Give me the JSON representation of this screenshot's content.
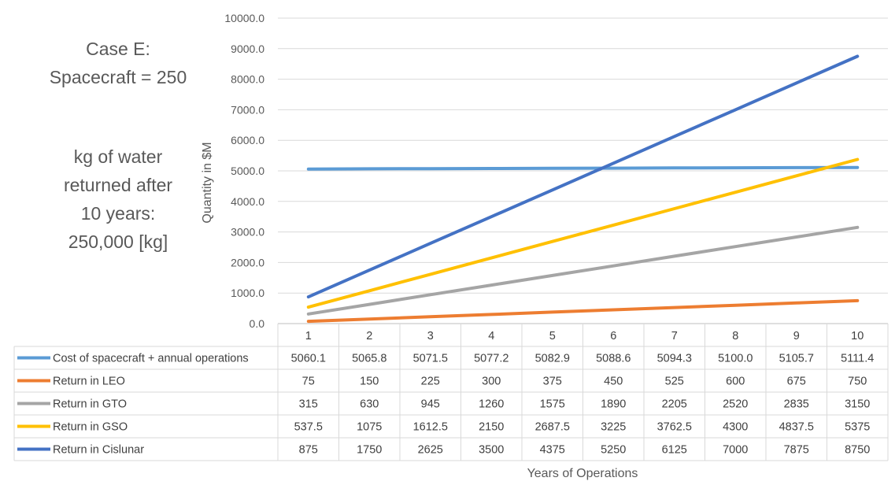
{
  "side_text": {
    "case_lines": [
      "Case E:",
      "Spacecraft = 250"
    ],
    "water_lines": [
      "kg of water",
      "returned after",
      "10 years:",
      "250,000 [kg]"
    ]
  },
  "chart_data": {
    "type": "line",
    "ylabel": "Quantity in $M",
    "xlabel": "Years of Operations",
    "ylim": [
      0,
      10000
    ],
    "ytick_step": 1000,
    "ytick_labels": [
      "0.0",
      "1000.0",
      "2000.0",
      "3000.0",
      "4000.0",
      "5000.0",
      "6000.0",
      "7000.0",
      "8000.0",
      "9000.0",
      "10000.0"
    ],
    "categories": [
      "1",
      "2",
      "3",
      "4",
      "5",
      "6",
      "7",
      "8",
      "9",
      "10"
    ],
    "grid": true,
    "legend": "data-table",
    "series": [
      {
        "name": "Cost of spacecraft + annual operations",
        "color": "#5B9BD5",
        "values": [
          5060.1,
          5065.8,
          5071.5,
          5077.2,
          5082.9,
          5088.6,
          5094.3,
          5100.0,
          5105.7,
          5111.4
        ],
        "labels": [
          "5060.1",
          "5065.8",
          "5071.5",
          "5077.2",
          "5082.9",
          "5088.6",
          "5094.3",
          "5100.0",
          "5105.7",
          "5111.4"
        ]
      },
      {
        "name": "Return in LEO",
        "color": "#ED7D31",
        "values": [
          75,
          150,
          225,
          300,
          375,
          450,
          525,
          600,
          675,
          750
        ],
        "labels": [
          "75",
          "150",
          "225",
          "300",
          "375",
          "450",
          "525",
          "600",
          "675",
          "750"
        ]
      },
      {
        "name": "Return in GTO",
        "color": "#A5A5A5",
        "values": [
          315,
          630,
          945,
          1260,
          1575,
          1890,
          2205,
          2520,
          2835,
          3150
        ],
        "labels": [
          "315",
          "630",
          "945",
          "1260",
          "1575",
          "1890",
          "2205",
          "2520",
          "2835",
          "3150"
        ]
      },
      {
        "name": "Return in GSO",
        "color": "#FFC000",
        "values": [
          537.5,
          1075,
          1612.5,
          2150,
          2687.5,
          3225,
          3762.5,
          4300,
          4837.5,
          5375
        ],
        "labels": [
          "537.5",
          "1075",
          "1612.5",
          "2150",
          "2687.5",
          "3225",
          "3762.5",
          "4300",
          "4837.5",
          "5375"
        ]
      },
      {
        "name": "Return in Cislunar",
        "color": "#4472C4",
        "values": [
          875,
          1750,
          2625,
          3500,
          4375,
          5250,
          6125,
          7000,
          7875,
          8750
        ],
        "labels": [
          "875",
          "1750",
          "2625",
          "3500",
          "4375",
          "5250",
          "6125",
          "7000",
          "7875",
          "8750"
        ]
      }
    ]
  }
}
